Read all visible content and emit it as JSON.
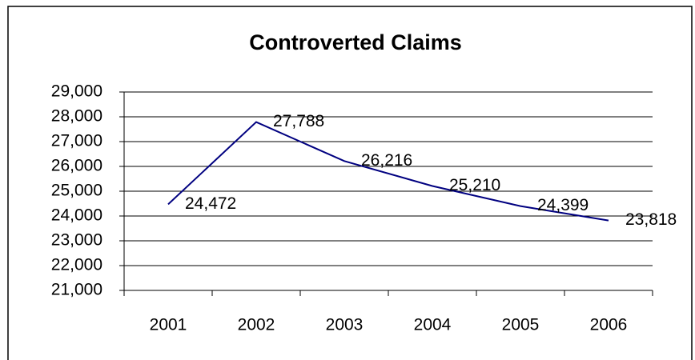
{
  "chart_data": {
    "type": "line",
    "title": "Controverted Claims",
    "categories": [
      "2001",
      "2002",
      "2003",
      "2004",
      "2005",
      "2006"
    ],
    "series": [
      {
        "name": null,
        "color": "#000080",
        "values": [
          24472,
          27788,
          26216,
          25210,
          24399,
          23818
        ],
        "value_labels": [
          "24,472",
          "27,788",
          "26,216",
          "25,210",
          "24,399",
          "23,818"
        ]
      }
    ],
    "ylim": [
      21000,
      29000
    ],
    "yticks": [
      {
        "value": 21000,
        "label": "21,000"
      },
      {
        "value": 22000,
        "label": "22,000"
      },
      {
        "value": 23000,
        "label": "23,000"
      },
      {
        "value": 24000,
        "label": "24,000"
      },
      {
        "value": 25000,
        "label": "25,000"
      },
      {
        "value": 26000,
        "label": "26,000"
      },
      {
        "value": 27000,
        "label": "27,000"
      },
      {
        "value": 28000,
        "label": "28,000"
      },
      {
        "value": 29000,
        "label": "29,000"
      }
    ],
    "grid": true
  }
}
